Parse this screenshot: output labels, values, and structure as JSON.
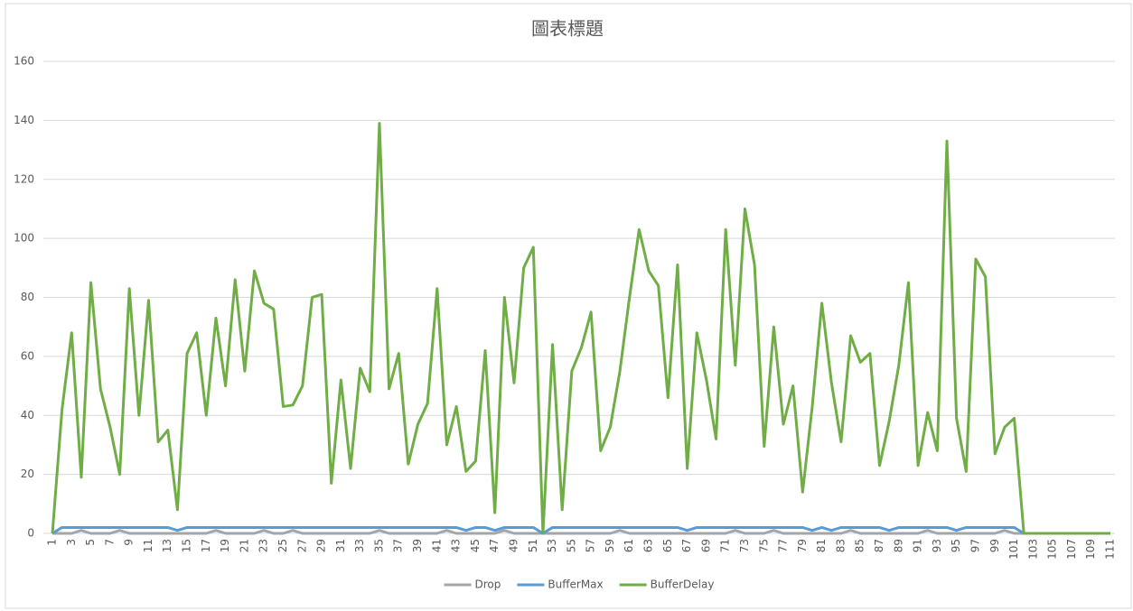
{
  "chart_data": {
    "type": "line",
    "title": "圖表標題",
    "categories": [
      "1",
      null,
      "3",
      null,
      "5",
      null,
      "7",
      null,
      "9",
      null,
      "11",
      null,
      "13",
      null,
      "15",
      null,
      "17",
      null,
      "19",
      null,
      "21",
      null,
      "23",
      null,
      "25",
      null,
      "27",
      null,
      "29",
      null,
      "31",
      null,
      "33",
      null,
      "35",
      null,
      "37",
      null,
      "39",
      null,
      "41",
      null,
      "43",
      null,
      "45",
      null,
      "47",
      null,
      "49",
      null,
      "51",
      null,
      "53",
      null,
      "55",
      null,
      "57",
      null,
      "59",
      null,
      "61",
      null,
      "63",
      null,
      "65",
      null,
      "67",
      null,
      "69",
      null,
      "71",
      null,
      "73",
      null,
      "75",
      null,
      "77",
      null,
      "79",
      null,
      "81",
      null,
      "83",
      null,
      "85",
      null,
      "87",
      null,
      "89",
      null,
      "91",
      null,
      "93",
      null,
      "95",
      null,
      "97",
      null,
      "99",
      null,
      "101",
      null,
      "103",
      null,
      "105",
      null,
      "107",
      null,
      "109",
      null,
      "111"
    ],
    "series": [
      {
        "name": "Drop",
        "color": "#a5a5a5",
        "values": [
          0,
          0,
          0,
          1,
          0,
          0,
          0,
          1,
          0,
          0,
          0,
          0,
          0,
          0,
          0,
          0,
          0,
          1,
          0,
          0,
          0,
          0,
          1,
          0,
          0,
          1,
          0,
          0,
          0,
          0,
          0,
          0,
          0,
          0,
          1,
          0,
          0,
          0,
          0,
          0,
          0,
          1,
          0,
          0,
          0,
          0,
          0,
          1,
          0,
          0,
          0,
          0,
          0,
          0,
          0,
          0,
          0,
          0,
          0,
          1,
          0,
          0,
          0,
          0,
          0,
          0,
          0,
          0,
          0,
          0,
          0,
          1,
          0,
          0,
          0,
          1,
          0,
          0,
          0,
          0,
          0,
          0,
          0,
          1,
          0,
          0,
          0,
          0,
          0,
          0,
          0,
          1,
          0,
          0,
          0,
          0,
          0,
          0,
          0,
          1,
          0,
          0,
          0,
          0,
          0,
          0,
          0,
          0,
          0,
          0,
          0
        ]
      },
      {
        "name": "BufferMax",
        "color": "#5b9bd5",
        "values": [
          0,
          2,
          2,
          2,
          2,
          2,
          2,
          2,
          2,
          2,
          2,
          2,
          2,
          1,
          2,
          2,
          2,
          2,
          2,
          2,
          2,
          2,
          2,
          2,
          2,
          2,
          2,
          2,
          2,
          2,
          2,
          2,
          2,
          2,
          2,
          2,
          2,
          2,
          2,
          2,
          2,
          2,
          2,
          1,
          2,
          2,
          1,
          2,
          2,
          2,
          2,
          0,
          2,
          2,
          2,
          2,
          2,
          2,
          2,
          2,
          2,
          2,
          2,
          2,
          2,
          2,
          1,
          2,
          2,
          2,
          2,
          2,
          2,
          2,
          2,
          2,
          2,
          2,
          2,
          1,
          2,
          1,
          2,
          2,
          2,
          2,
          2,
          1,
          2,
          2,
          2,
          2,
          2,
          2,
          1,
          2,
          2,
          2,
          2,
          2,
          2,
          0,
          0,
          0,
          0,
          0,
          0,
          0,
          0,
          0,
          0
        ]
      },
      {
        "name": "BufferDelay",
        "color": "#70ad47",
        "values": [
          0,
          42,
          68,
          19,
          85,
          49,
          36,
          20,
          83,
          40,
          79,
          31,
          35,
          8,
          61,
          68,
          40,
          73,
          50,
          86,
          55,
          89,
          78,
          76,
          43,
          43.5,
          50,
          80,
          81,
          17,
          52,
          22,
          56,
          48,
          139,
          49,
          61,
          23.5,
          37,
          44,
          83,
          30,
          43,
          21,
          24.5,
          62,
          7,
          80,
          51,
          90,
          97,
          0,
          64,
          8,
          55,
          63,
          75,
          28,
          36,
          55,
          80,
          103,
          89,
          84,
          46,
          91,
          22,
          68,
          52,
          32,
          103,
          57,
          110,
          91,
          29.5,
          70,
          37,
          50,
          14,
          43,
          78,
          51,
          31,
          67,
          58,
          61,
          23,
          38,
          57,
          85,
          23,
          41,
          28,
          133,
          39,
          21,
          93,
          87,
          27,
          36,
          39,
          0,
          0,
          0,
          0,
          0,
          0,
          0,
          0,
          0,
          0
        ]
      }
    ],
    "ylim": [
      0,
      160
    ],
    "yticks": [
      0,
      20,
      40,
      60,
      80,
      100,
      120,
      140,
      160
    ],
    "grid": true,
    "legend": "bottom"
  }
}
